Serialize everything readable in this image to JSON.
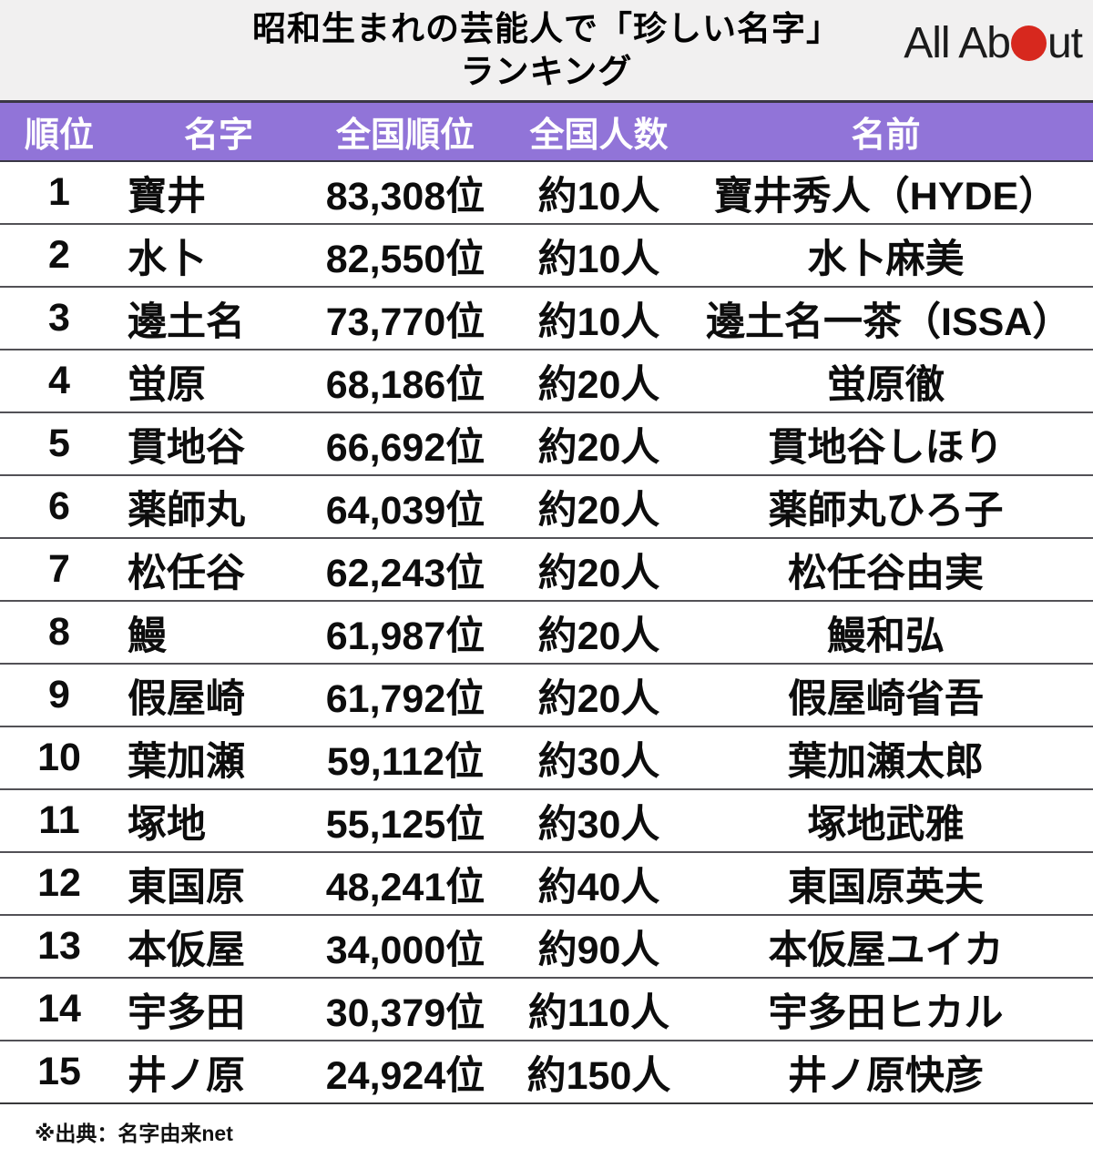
{
  "header": {
    "title_line1": "昭和生まれの芸能人で「珍しい名字」",
    "title_line2": "ランキング",
    "logo": {
      "text_left": "All Ab",
      "text_right": "ut",
      "full_name": "All About"
    }
  },
  "chart_data": {
    "type": "table",
    "title": "昭和生まれの芸能人で「珍しい名字」ランキング",
    "columns": [
      "順位",
      "名字",
      "全国順位",
      "全国人数",
      "名前"
    ],
    "rows": [
      {
        "rank": "1",
        "surname": "寶井",
        "national_rank": "83,308位",
        "count": "約10人",
        "name": "寶井秀人（HYDE）"
      },
      {
        "rank": "2",
        "surname": "水卜",
        "national_rank": "82,550位",
        "count": "約10人",
        "name": "水卜麻美"
      },
      {
        "rank": "3",
        "surname": "邊土名",
        "national_rank": "73,770位",
        "count": "約10人",
        "name": "邊土名一茶（ISSA）"
      },
      {
        "rank": "4",
        "surname": "蛍原",
        "national_rank": "68,186位",
        "count": "約20人",
        "name": "蛍原徹"
      },
      {
        "rank": "5",
        "surname": "貫地谷",
        "national_rank": "66,692位",
        "count": "約20人",
        "name": "貫地谷しほり"
      },
      {
        "rank": "6",
        "surname": "薬師丸",
        "national_rank": "64,039位",
        "count": "約20人",
        "name": "薬師丸ひろ子"
      },
      {
        "rank": "7",
        "surname": "松任谷",
        "national_rank": "62,243位",
        "count": "約20人",
        "name": "松任谷由実"
      },
      {
        "rank": "8",
        "surname": "鰻",
        "national_rank": "61,987位",
        "count": "約20人",
        "name": "鰻和弘"
      },
      {
        "rank": "9",
        "surname": "假屋崎",
        "national_rank": "61,792位",
        "count": "約20人",
        "name": "假屋崎省吾"
      },
      {
        "rank": "10",
        "surname": "葉加瀬",
        "national_rank": "59,112位",
        "count": "約30人",
        "name": "葉加瀬太郎"
      },
      {
        "rank": "11",
        "surname": "塚地",
        "national_rank": "55,125位",
        "count": "約30人",
        "name": "塚地武雅"
      },
      {
        "rank": "12",
        "surname": "東国原",
        "national_rank": "48,241位",
        "count": "約40人",
        "name": "東国原英夫"
      },
      {
        "rank": "13",
        "surname": "本仮屋",
        "national_rank": "34,000位",
        "count": "約90人",
        "name": "本仮屋ユイカ"
      },
      {
        "rank": "14",
        "surname": "宇多田",
        "national_rank": "30,379位",
        "count": "約110人",
        "name": "宇多田ヒカル"
      },
      {
        "rank": "15",
        "surname": "井ノ原",
        "national_rank": "24,924位",
        "count": "約150人",
        "name": "井ノ原快彦"
      }
    ],
    "source_note": "※出典：名字由来net"
  },
  "colors": {
    "header_bg": "#9174d8",
    "header_text": "#ffffff",
    "header_border": "#3a3745",
    "title_bg": "#f1f0f0",
    "logo_red": "#d7281e",
    "row_separator": "#525156"
  }
}
